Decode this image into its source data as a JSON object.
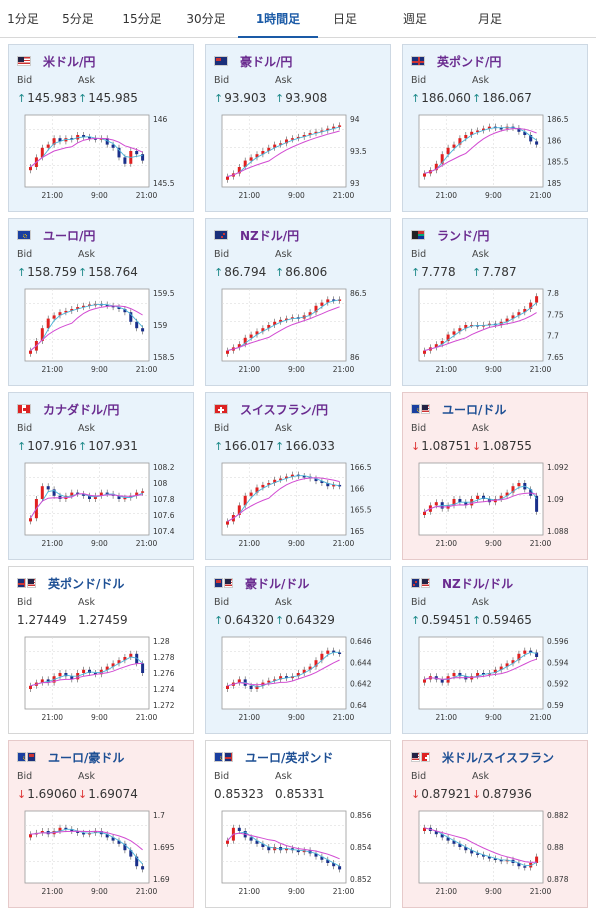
{
  "tabs": [
    "1分足",
    "5分足",
    "15分足",
    "30分足",
    "1時間足",
    "日足",
    "週足",
    "月足"
  ],
  "active_tab": 4,
  "labels": {
    "bid": "Bid",
    "ask": "Ask"
  },
  "x_ticks": [
    "21:00",
    "9:00",
    "21:00"
  ],
  "cards": [
    {
      "name": "米ドル/円",
      "flag": "us",
      "theme": "up",
      "dir": "up",
      "bid": "145.983",
      "ask": "145.985",
      "ticks": [
        "146",
        "145.5"
      ],
      "series": [
        0.25,
        0.4,
        0.55,
        0.6,
        0.7,
        0.65,
        0.7,
        0.68,
        0.75,
        0.72,
        0.7,
        0.68,
        0.7,
        0.6,
        0.55,
        0.4,
        0.3,
        0.5,
        0.45,
        0.35
      ]
    },
    {
      "name": "豪ドル/円",
      "flag": "au",
      "theme": "up",
      "dir": "up",
      "bid": "93.903",
      "ask": "93.908",
      "ticks": [
        "94",
        "93.5",
        "93"
      ],
      "series": [
        0.1,
        0.15,
        0.25,
        0.35,
        0.4,
        0.45,
        0.5,
        0.55,
        0.6,
        0.62,
        0.68,
        0.7,
        0.72,
        0.75,
        0.78,
        0.8,
        0.82,
        0.85,
        0.88,
        0.9
      ]
    },
    {
      "name": "英ポンド/円",
      "flag": "uk",
      "theme": "up",
      "dir": "up",
      "bid": "186.060",
      "ask": "186.067",
      "ticks": [
        "186.5",
        "186",
        "185.5",
        "185"
      ],
      "series": [
        0.15,
        0.2,
        0.3,
        0.45,
        0.55,
        0.6,
        0.7,
        0.75,
        0.8,
        0.82,
        0.85,
        0.88,
        0.86,
        0.85,
        0.88,
        0.86,
        0.8,
        0.75,
        0.65,
        0.6
      ]
    },
    {
      "name": "ユーロ/円",
      "flag": "eu",
      "theme": "up",
      "dir": "up",
      "bid": "158.759",
      "ask": "158.764",
      "ticks": [
        "159.5",
        "159",
        "158.5"
      ],
      "series": [
        0.1,
        0.25,
        0.45,
        0.6,
        0.65,
        0.7,
        0.72,
        0.75,
        0.78,
        0.8,
        0.82,
        0.83,
        0.82,
        0.8,
        0.78,
        0.75,
        0.7,
        0.55,
        0.45,
        0.4
      ]
    },
    {
      "name": "NZドル/円",
      "flag": "nz",
      "theme": "up",
      "dir": "up",
      "bid": "86.794",
      "ask": "86.806",
      "ticks": [
        "86.5",
        "86"
      ],
      "series": [
        0.1,
        0.15,
        0.2,
        0.3,
        0.35,
        0.4,
        0.45,
        0.5,
        0.55,
        0.58,
        0.6,
        0.62,
        0.6,
        0.65,
        0.7,
        0.8,
        0.85,
        0.9,
        0.88,
        0.9
      ]
    },
    {
      "name": "ランド/円",
      "flag": "za",
      "theme": "up",
      "dir": "up",
      "bid": "7.778",
      "ask": "7.787",
      "ticks": [
        "7.8",
        "7.75",
        "7.7",
        "7.65"
      ],
      "series": [
        0.1,
        0.15,
        0.2,
        0.25,
        0.35,
        0.4,
        0.45,
        0.5,
        0.5,
        0.48,
        0.5,
        0.52,
        0.5,
        0.55,
        0.6,
        0.65,
        0.7,
        0.75,
        0.85,
        0.95
      ]
    },
    {
      "name": "カナダドル/円",
      "flag": "ca",
      "theme": "up",
      "dir": "up",
      "bid": "107.916",
      "ask": "107.931",
      "ticks": [
        "108.2",
        "108",
        "107.8",
        "107.6",
        "107.4"
      ],
      "series": [
        0.2,
        0.5,
        0.7,
        0.65,
        0.55,
        0.5,
        0.55,
        0.6,
        0.58,
        0.55,
        0.5,
        0.55,
        0.6,
        0.58,
        0.55,
        0.5,
        0.52,
        0.55,
        0.6,
        0.62
      ]
    },
    {
      "name": "スイスフラン/円",
      "flag": "ch",
      "theme": "up",
      "dir": "up",
      "bid": "166.017",
      "ask": "166.033",
      "ticks": [
        "166.5",
        "166",
        "165.5",
        "165"
      ],
      "series": [
        0.15,
        0.25,
        0.4,
        0.55,
        0.6,
        0.68,
        0.72,
        0.75,
        0.8,
        0.82,
        0.85,
        0.88,
        0.86,
        0.85,
        0.82,
        0.78,
        0.75,
        0.7,
        0.72,
        0.7
      ]
    },
    {
      "name": "ユーロ/ドル",
      "flag": "euus",
      "theme": "down",
      "dir": "down",
      "bid": "1.08751",
      "ask": "1.08755",
      "ticks": [
        "1.092",
        "1.09",
        "1.088"
      ],
      "series": [
        0.3,
        0.4,
        0.45,
        0.35,
        0.4,
        0.5,
        0.45,
        0.4,
        0.5,
        0.55,
        0.5,
        0.45,
        0.5,
        0.55,
        0.6,
        0.7,
        0.75,
        0.65,
        0.55,
        0.3
      ]
    },
    {
      "name": "英ポンド/ドル",
      "flag": "ukus",
      "theme": "flat",
      "dir": "none",
      "bid": "1.27449",
      "ask": "1.27459",
      "ticks": [
        "1.28",
        "1.278",
        "1.276",
        "1.274",
        "1.272"
      ],
      "series": [
        0.3,
        0.35,
        0.4,
        0.35,
        0.45,
        0.5,
        0.45,
        0.4,
        0.5,
        0.55,
        0.5,
        0.48,
        0.55,
        0.6,
        0.65,
        0.7,
        0.75,
        0.8,
        0.65,
        0.5
      ]
    },
    {
      "name": "豪ドル/ドル",
      "flag": "auus",
      "theme": "up",
      "dir": "up",
      "bid": "0.64320",
      "ask": "0.64329",
      "ticks": [
        "0.646",
        "0.644",
        "0.642",
        "0.64"
      ],
      "series": [
        0.3,
        0.35,
        0.4,
        0.3,
        0.25,
        0.3,
        0.35,
        0.38,
        0.4,
        0.45,
        0.42,
        0.45,
        0.5,
        0.55,
        0.6,
        0.7,
        0.8,
        0.85,
        0.82,
        0.8
      ]
    },
    {
      "name": "NZドル/ドル",
      "flag": "nzus",
      "theme": "up",
      "dir": "up",
      "bid": "0.59451",
      "ask": "0.59465",
      "ticks": [
        "0.596",
        "0.594",
        "0.592",
        "0.59"
      ],
      "series": [
        0.4,
        0.45,
        0.4,
        0.35,
        0.45,
        0.5,
        0.45,
        0.4,
        0.45,
        0.5,
        0.48,
        0.5,
        0.55,
        0.6,
        0.65,
        0.7,
        0.8,
        0.85,
        0.82,
        0.75
      ]
    },
    {
      "name": "ユーロ/豪ドル",
      "flag": "euau",
      "theme": "down",
      "dir": "down",
      "bid": "1.69060",
      "ask": "1.69074",
      "ticks": [
        "1.7",
        "1.695",
        "1.69"
      ],
      "series": [
        0.7,
        0.72,
        0.75,
        0.7,
        0.75,
        0.8,
        0.78,
        0.75,
        0.72,
        0.7,
        0.72,
        0.75,
        0.7,
        0.65,
        0.6,
        0.55,
        0.45,
        0.35,
        0.2,
        0.15
      ]
    },
    {
      "name": "ユーロ/英ポンド",
      "flag": "euuk",
      "theme": "flat",
      "dir": "none",
      "bid": "0.85323",
      "ask": "0.85331",
      "ticks": [
        "0.856",
        "0.854",
        "0.852"
      ],
      "series": [
        0.6,
        0.8,
        0.75,
        0.65,
        0.6,
        0.55,
        0.5,
        0.45,
        0.5,
        0.45,
        0.48,
        0.45,
        0.42,
        0.45,
        0.4,
        0.35,
        0.3,
        0.25,
        0.2,
        0.15
      ]
    },
    {
      "name": "米ドル/スイスフラン",
      "flag": "usch",
      "theme": "down",
      "dir": "down",
      "bid": "0.87921",
      "ask": "0.87936",
      "ticks": [
        "0.882",
        "0.88",
        "0.878"
      ],
      "series": [
        0.8,
        0.75,
        0.7,
        0.65,
        0.6,
        0.55,
        0.5,
        0.45,
        0.4,
        0.38,
        0.35,
        0.32,
        0.3,
        0.28,
        0.3,
        0.25,
        0.2,
        0.18,
        0.25,
        0.35
      ]
    }
  ]
}
